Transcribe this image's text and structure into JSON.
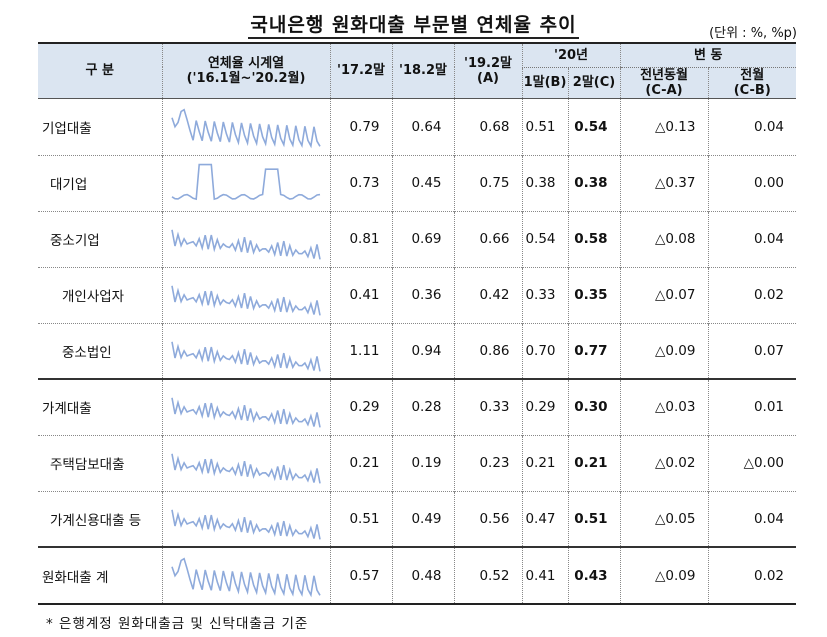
{
  "title": "국내은행 원화대출 부문별 연체율 추이",
  "unit": "(단위 : %, %p)",
  "header": {
    "gubun": "구 분",
    "series_line1": "연체율 시계열",
    "series_line2": "('16.1월~'20.2월)",
    "c1": "'17.2말",
    "c2": "'18.2말",
    "c3_line1": "'19.2말",
    "c3_line2": "(A)",
    "group20": "'20년",
    "c4": "1말(B)",
    "c5": "2말(C)",
    "change": "변 동",
    "c6_line1": "전년동월",
    "c6_line2": "(C-A)",
    "c7_line1": "전월",
    "c7_line2": "(C-B)"
  },
  "rows": [
    {
      "label": "기업대출",
      "v1": "0.79",
      "v2": "0.64",
      "v3": "0.68",
      "v4": "0.51",
      "v5": "0.54",
      "v6": "△0.13",
      "v7": "0.04"
    },
    {
      "label": "대기업",
      "v1": "0.73",
      "v2": "0.45",
      "v3": "0.75",
      "v4": "0.38",
      "v5": "0.38",
      "v6": "△0.37",
      "v7": "0.00"
    },
    {
      "label": "중소기업",
      "v1": "0.81",
      "v2": "0.69",
      "v3": "0.66",
      "v4": "0.54",
      "v5": "0.58",
      "v6": "△0.08",
      "v7": "0.04"
    },
    {
      "label": "개인사업자",
      "v1": "0.41",
      "v2": "0.36",
      "v3": "0.42",
      "v4": "0.33",
      "v5": "0.35",
      "v6": "△0.07",
      "v7": "0.02"
    },
    {
      "label": "중소법인",
      "v1": "1.11",
      "v2": "0.94",
      "v3": "0.86",
      "v4": "0.70",
      "v5": "0.77",
      "v6": "△0.09",
      "v7": "0.07"
    },
    {
      "label": "가계대출",
      "v1": "0.29",
      "v2": "0.28",
      "v3": "0.33",
      "v4": "0.29",
      "v5": "0.30",
      "v6": "△0.03",
      "v7": "0.01"
    },
    {
      "label": "주택담보대출",
      "v1": "0.21",
      "v2": "0.19",
      "v3": "0.23",
      "v4": "0.21",
      "v5": "0.21",
      "v6": "△0.02",
      "v7": "△0.00"
    },
    {
      "label": "가계신용대출 등",
      "v1": "0.51",
      "v2": "0.49",
      "v3": "0.56",
      "v4": "0.47",
      "v5": "0.51",
      "v6": "△0.05",
      "v7": "0.04"
    },
    {
      "label": "원화대출 계",
      "v1": "0.57",
      "v2": "0.48",
      "v3": "0.52",
      "v4": "0.41",
      "v5": "0.43",
      "v6": "△0.09",
      "v7": "0.02"
    }
  ],
  "sparkline_color": "#8eaadb",
  "note": "* 은행계정 원화대출금 및 신탁대출금 기준"
}
